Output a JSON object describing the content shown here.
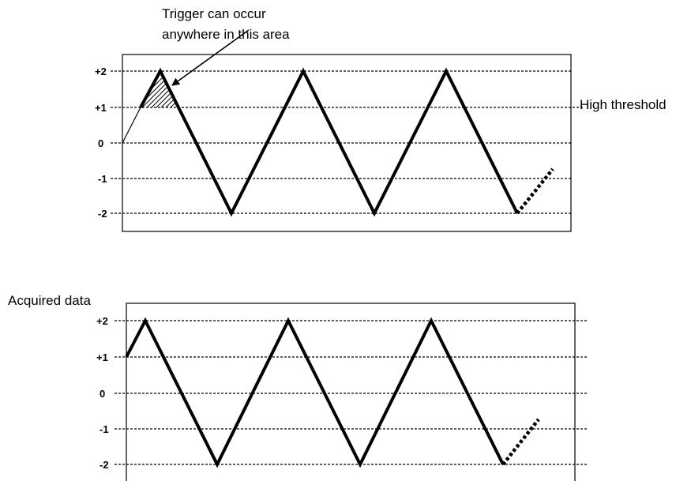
{
  "annotation": {
    "line1": "Trigger can occur",
    "line2": "anywhere in this area"
  },
  "threshold_label": "High threshold",
  "acquired_label": "Acquired data",
  "levels": [
    "+2",
    "+1",
    "0",
    "-1",
    "-2"
  ]
}
